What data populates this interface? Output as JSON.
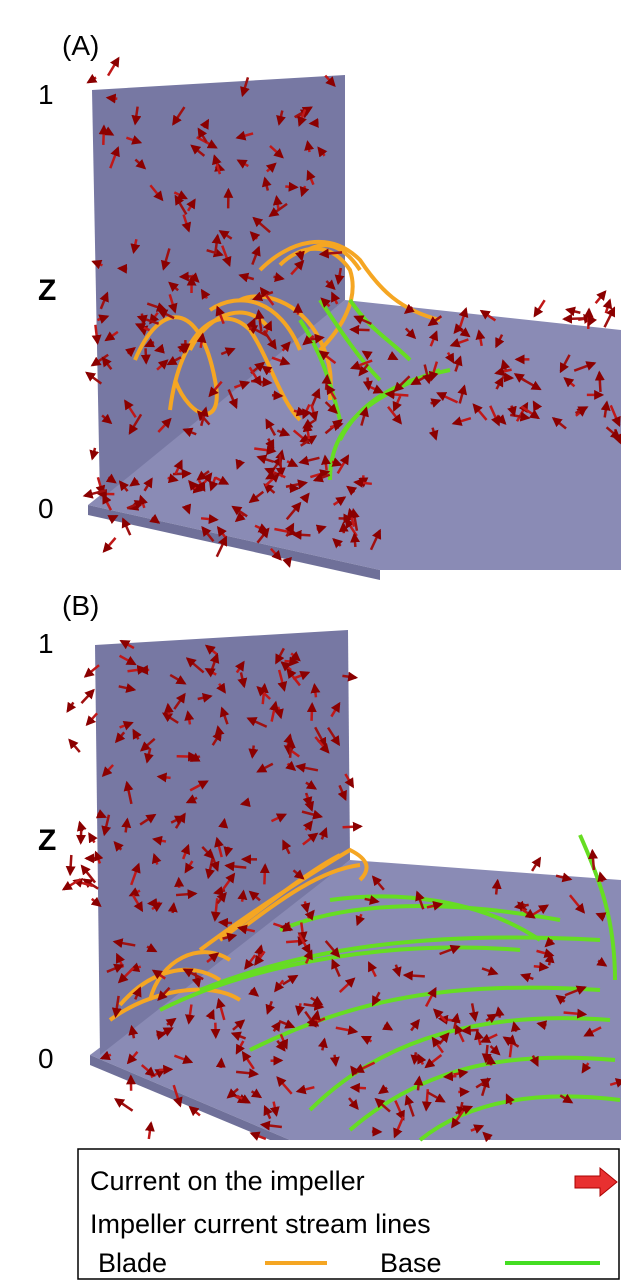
{
  "panels": [
    {
      "label": "(A)",
      "axis": {
        "top": "1",
        "label": "Z",
        "bottom": "0"
      }
    },
    {
      "label": "(B)",
      "axis": {
        "top": "1",
        "label": "Z",
        "bottom": "0"
      }
    }
  ],
  "legend": {
    "current": "Current on the impeller",
    "stream_lines": "Impeller current stream lines",
    "blade": "Blade",
    "base": "Base"
  }
}
